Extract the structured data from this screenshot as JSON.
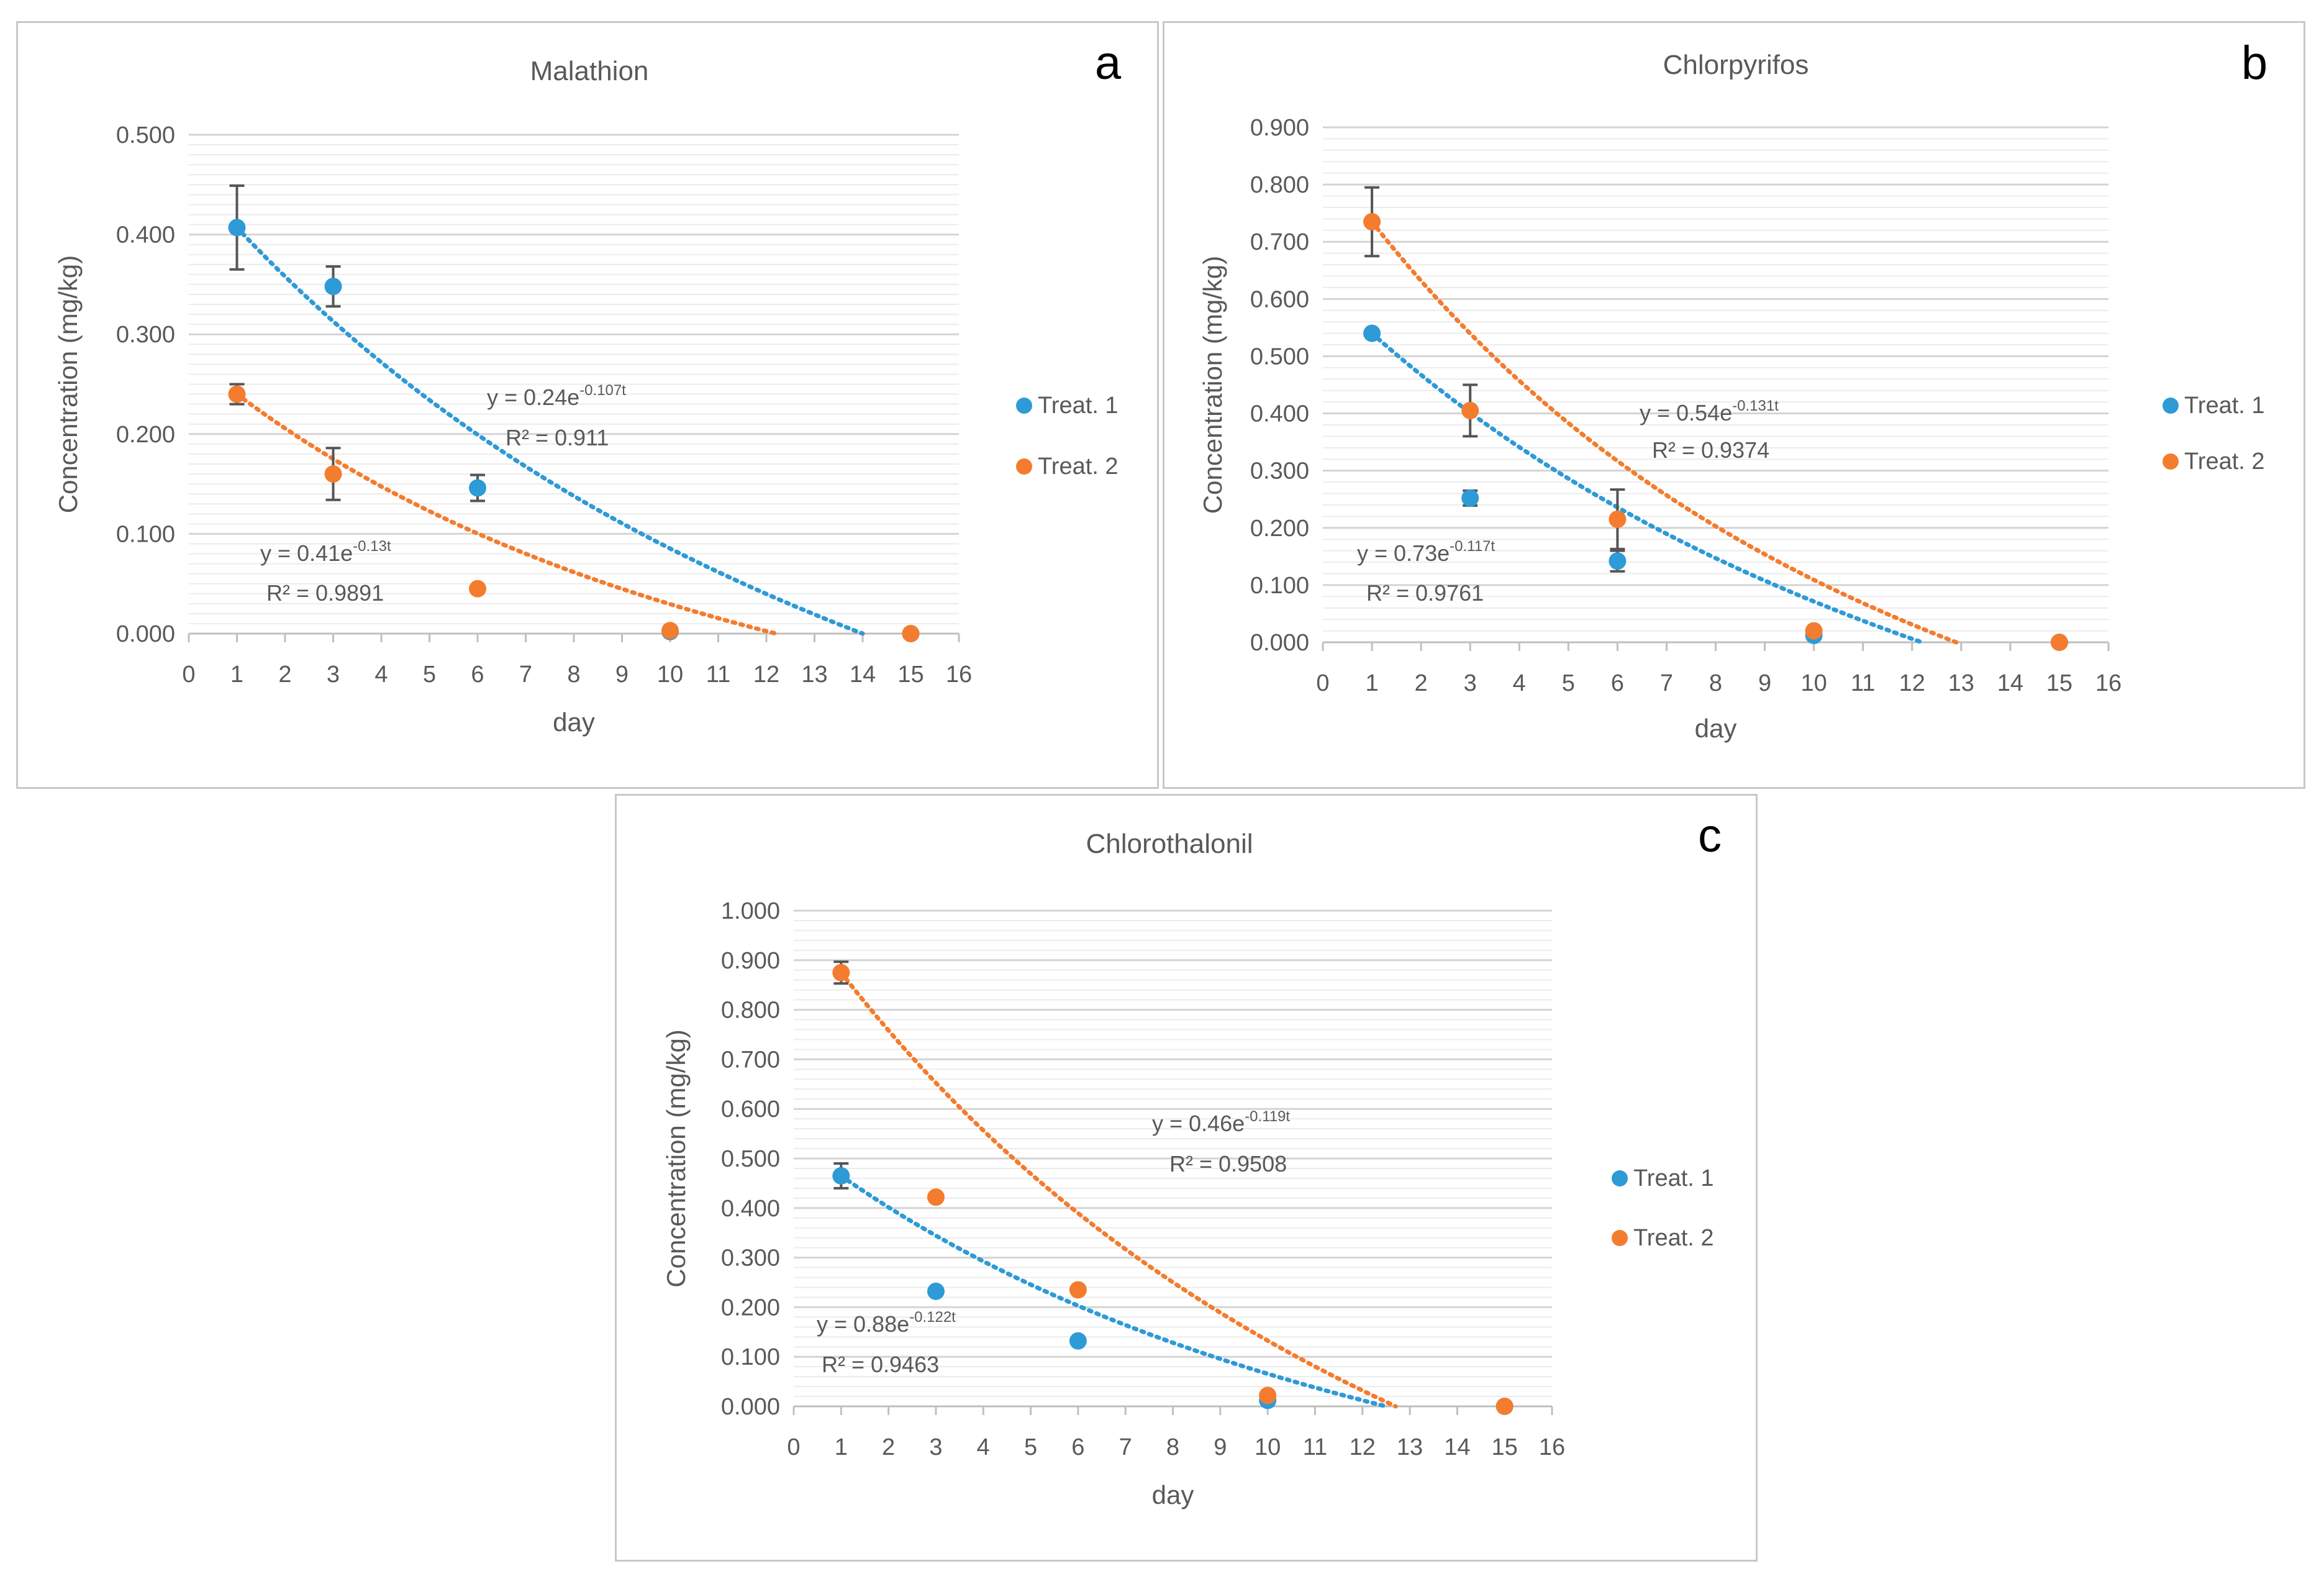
{
  "chart_data": [
    {
      "type": "scatter",
      "panel_letter": "a",
      "title": "Malathion",
      "xlabel": "day",
      "ylabel": "Concentration (mg/kg)",
      "xlim": [
        0,
        16
      ],
      "ylim": [
        0,
        0.5
      ],
      "xticks": [
        0,
        1,
        2,
        3,
        4,
        5,
        6,
        7,
        8,
        9,
        10,
        11,
        12,
        13,
        14,
        15,
        16
      ],
      "yticks": [
        "0.000",
        "0.100",
        "0.200",
        "0.300",
        "0.400",
        "0.500"
      ],
      "minor_grid_step": 0.01,
      "series": [
        {
          "name": "Treat. 1",
          "color": "#2E9AD6",
          "x": [
            1,
            3,
            6,
            10,
            15
          ],
          "y": [
            0.407,
            0.348,
            0.146,
            0.002,
            0.0
          ],
          "err": [
            0.042,
            0.02,
            0.013,
            0,
            0
          ],
          "fit": {
            "a": 0.24,
            "k": 0.107,
            "label": "y = 0.24e",
            "exponent": "-0.107t",
            "r2": "R² = 0.911",
            "x_to": 14
          }
        },
        {
          "name": "Treat. 2",
          "color": "#F47C2E",
          "x": [
            1,
            3,
            6,
            10,
            15
          ],
          "y": [
            0.24,
            0.16,
            0.045,
            0.003,
            0.0
          ],
          "err": [
            0.01,
            0.026,
            0,
            0,
            0
          ],
          "fit": {
            "a": 0.41,
            "k": 0.13,
            "label": "y = 0.41e",
            "exponent": "-0.13t",
            "r2": "R² = 0.9891",
            "x_to": 12.2
          }
        }
      ]
    },
    {
      "type": "scatter",
      "panel_letter": "b",
      "title": "Chlorpyrifos",
      "xlabel": "day",
      "ylabel": "Concentration (mg/kg)",
      "xlim": [
        0,
        16
      ],
      "ylim": [
        0,
        0.9
      ],
      "xticks": [
        0,
        1,
        2,
        3,
        4,
        5,
        6,
        7,
        8,
        9,
        10,
        11,
        12,
        13,
        14,
        15,
        16
      ],
      "yticks": [
        "0.000",
        "0.100",
        "0.200",
        "0.300",
        "0.400",
        "0.500",
        "0.600",
        "0.700",
        "0.800",
        "0.900"
      ],
      "minor_grid_step": 0.02,
      "series": [
        {
          "name": "Treat. 1",
          "color": "#2E9AD6",
          "x": [
            1,
            3,
            6,
            10,
            15
          ],
          "y": [
            0.54,
            0.252,
            0.142,
            0.012,
            0.0
          ],
          "err": [
            0,
            0.013,
            0.018,
            0,
            0
          ],
          "fit": {
            "a": 0.73,
            "k": 0.117,
            "label": "y = 0.73e",
            "exponent": "-0.117t",
            "r2": "R² = 0.9761",
            "x_to": 12.2
          }
        },
        {
          "name": "Treat. 2",
          "color": "#F47C2E",
          "x": [
            1,
            3,
            6,
            10,
            15
          ],
          "y": [
            0.735,
            0.405,
            0.215,
            0.02,
            0.0
          ],
          "err": [
            0.06,
            0.045,
            0.052,
            0,
            0
          ],
          "fit": {
            "a": 0.54,
            "k": 0.131,
            "label": "y = 0.54e",
            "exponent": "-0.131t",
            "r2": "R² = 0.9374",
            "x_to": 12.9
          }
        }
      ]
    },
    {
      "type": "scatter",
      "panel_letter": "c",
      "title": "Chlorothalonil",
      "xlabel": "day",
      "ylabel": "Concentration (mg/kg)",
      "xlim": [
        0,
        16
      ],
      "ylim": [
        0,
        1.0
      ],
      "xticks": [
        0,
        1,
        2,
        3,
        4,
        5,
        6,
        7,
        8,
        9,
        10,
        11,
        12,
        13,
        14,
        15,
        16
      ],
      "yticks": [
        "0.000",
        "0.100",
        "0.200",
        "0.300",
        "0.400",
        "0.500",
        "0.600",
        "0.700",
        "0.800",
        "0.900",
        "1.000"
      ],
      "minor_grid_step": 0.02,
      "series": [
        {
          "name": "Treat. 1",
          "color": "#2E9AD6",
          "x": [
            1,
            3,
            6,
            10,
            15
          ],
          "y": [
            0.465,
            0.232,
            0.132,
            0.012,
            0.0
          ],
          "err": [
            0.025,
            0,
            0,
            0,
            0
          ],
          "fit": {
            "a": 0.88,
            "k": 0.122,
            "label": "y = 0.88e",
            "exponent": "-0.122t",
            "r2": "R² = 0.9463",
            "x_to": 12.5
          }
        },
        {
          "name": "Treat. 2",
          "color": "#F47C2E",
          "x": [
            1,
            3,
            6,
            10,
            15
          ],
          "y": [
            0.875,
            0.422,
            0.235,
            0.022,
            0.0
          ],
          "err": [
            0.022,
            0,
            0,
            0,
            0
          ],
          "fit": {
            "a": 0.46,
            "k": 0.119,
            "label": "y = 0.46e",
            "exponent": "-0.119t",
            "r2": "R² = 0.9508",
            "x_to": 12.7
          }
        }
      ]
    }
  ]
}
